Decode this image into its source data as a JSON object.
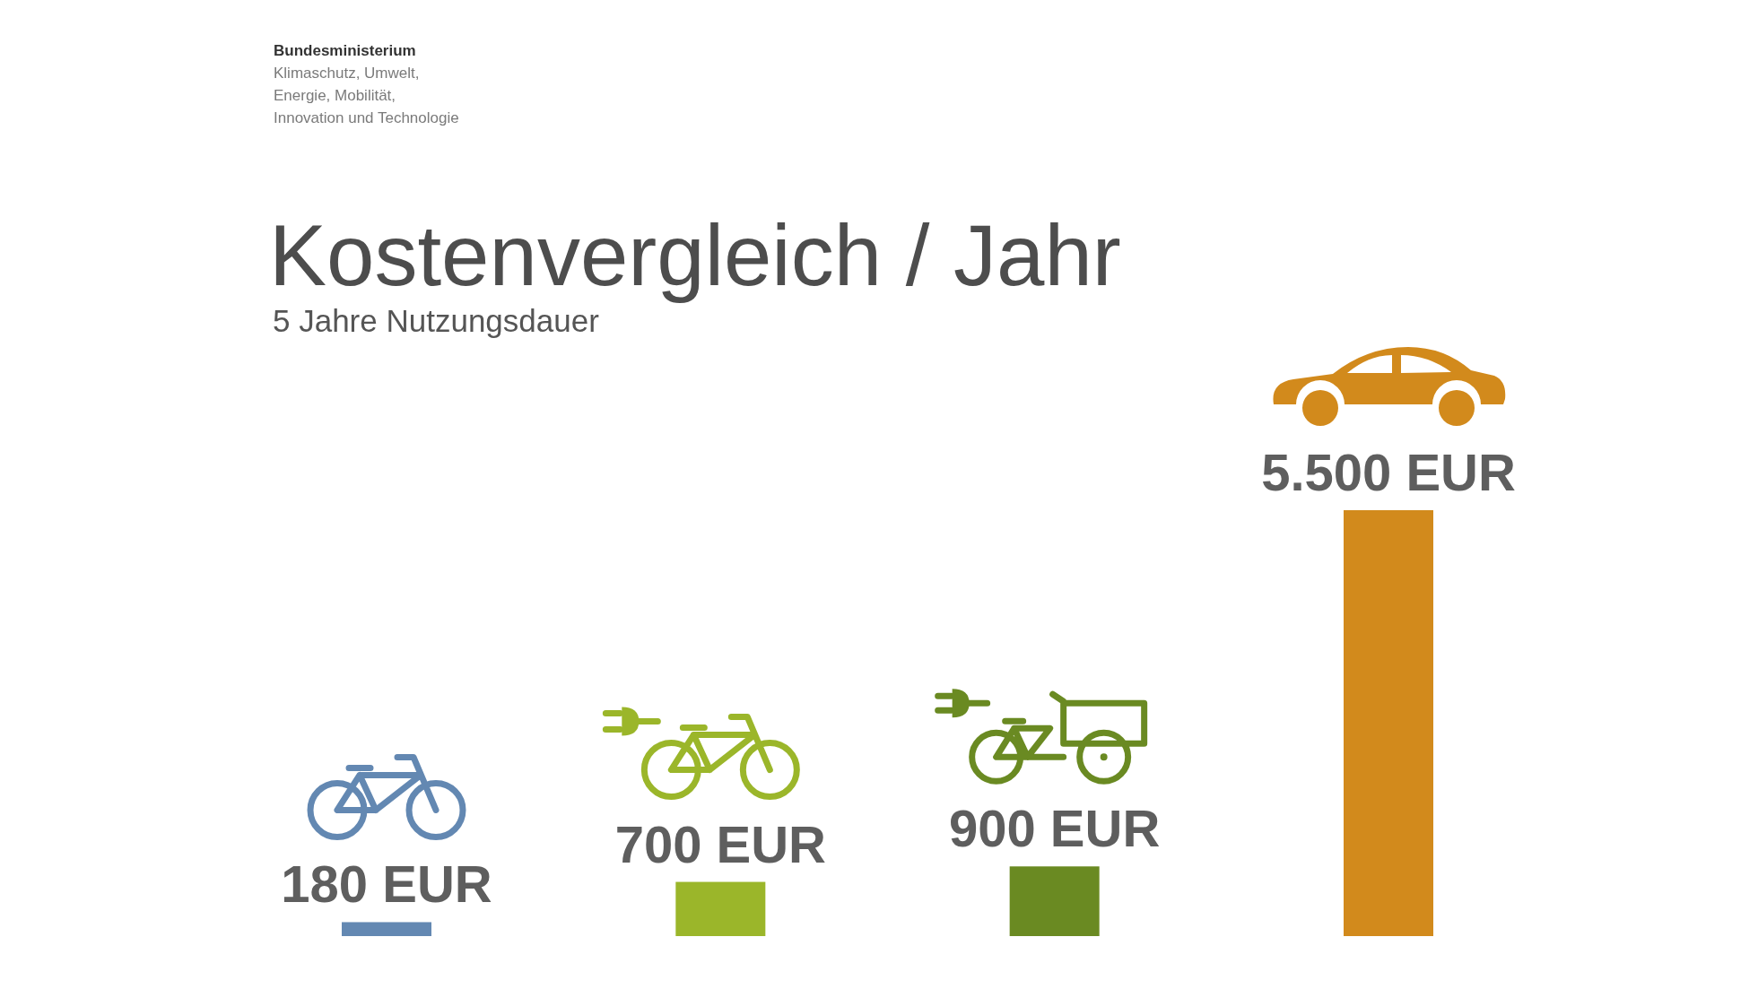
{
  "chart_data": {
    "type": "bar",
    "title": "Kostenvergleich / Jahr",
    "subtitle": "5 Jahre Nutzungsdauer",
    "annotations": [
      "Bundesministerium\nKlimaschutz, Umwelt,\nEnergie, Mobilität,\nInnovation und Technologie"
    ],
    "categories": [
      null,
      null,
      null,
      null
    ],
    "values": [
      180,
      700,
      900,
      5500
    ],
    "colors": [
      "#6388b2",
      "#9bb62a",
      "#6a8a22",
      "#d28a1c"
    ],
    "value_labels": [
      "180 EUR",
      "700 EUR",
      "900 EUR",
      "5.500 EUR"
    ]
  }
}
